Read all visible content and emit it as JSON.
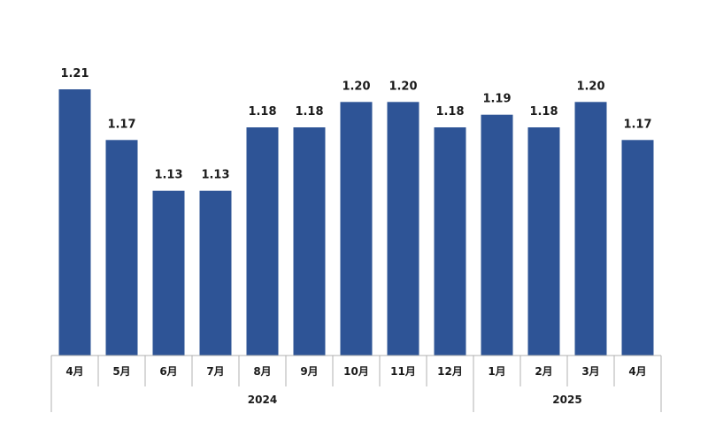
{
  "chart_data": {
    "type": "bar",
    "categories": [
      "4月",
      "5月",
      "6月",
      "7月",
      "8月",
      "9月",
      "10月",
      "11月",
      "12月",
      "1月",
      "2月",
      "3月",
      "4月"
    ],
    "values": [
      1.21,
      1.17,
      1.13,
      1.13,
      1.18,
      1.18,
      1.2,
      1.2,
      1.18,
      1.19,
      1.18,
      1.2,
      1.17
    ],
    "value_labels": [
      "1.21",
      "1.17",
      "1.13",
      "1.13",
      "1.18",
      "1.18",
      "1.20",
      "1.20",
      "1.18",
      "1.19",
      "1.18",
      "1.20",
      "1.17"
    ],
    "groups": [
      {
        "label": "2024",
        "count": 9
      },
      {
        "label": "2025",
        "count": 4
      }
    ],
    "ylim": [
      1.0,
      1.23
    ],
    "bar_color": "#2e5496",
    "grid": false,
    "legend": "none"
  }
}
